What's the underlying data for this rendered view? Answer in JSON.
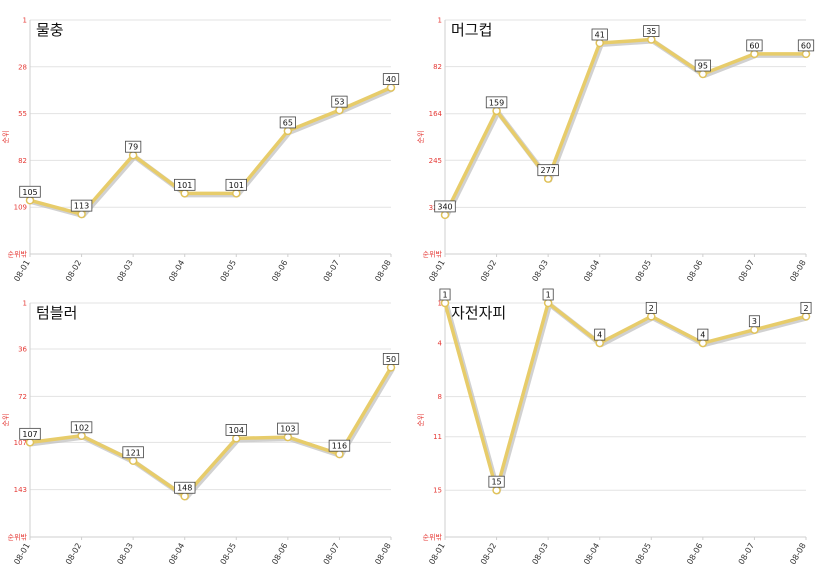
{
  "chart_data": [
    {
      "type": "line",
      "title": "물충",
      "ylabel": "순위",
      "ymin_label": "순위밖",
      "ylim": [
        1,
        136
      ],
      "yticks": [
        1,
        28,
        55,
        82,
        109
      ],
      "reversed": true,
      "categories": [
        "08-01",
        "08-02",
        "08-03",
        "08-04",
        "08-05",
        "08-06",
        "08-07",
        "08-08"
      ],
      "values": [
        105,
        113,
        79,
        101,
        101,
        65,
        53,
        40
      ],
      "color": "#e7cc6a"
    },
    {
      "type": "line",
      "title": "머그컵",
      "ylabel": "순위",
      "ymin_label": "순위밖",
      "ylim": [
        1,
        408
      ],
      "yticks": [
        1,
        82,
        164,
        245,
        327
      ],
      "reversed": true,
      "categories": [
        "08-01",
        "08-02",
        "08-03",
        "08-04",
        "08-05",
        "08-06",
        "08-07",
        "08-08"
      ],
      "values": [
        340,
        159,
        277,
        41,
        35,
        95,
        60,
        60
      ],
      "color": "#e7cc6a"
    },
    {
      "type": "line",
      "title": "텀블러",
      "ylabel": "순위",
      "ymin_label": "순위밖",
      "ylim": [
        1,
        179
      ],
      "yticks": [
        1,
        36,
        72,
        107,
        143
      ],
      "reversed": true,
      "categories": [
        "08-01",
        "08-02",
        "08-03",
        "08-04",
        "08-05",
        "08-06",
        "08-07",
        "08-08"
      ],
      "values": [
        107,
        102,
        121,
        148,
        104,
        103,
        116,
        50
      ],
      "color": "#e7cc6a"
    },
    {
      "type": "line",
      "title": "자전자피",
      "ylabel": "순위",
      "ymin_label": "순위밖",
      "ylim": [
        1,
        18.5
      ],
      "yticks": [
        1,
        4,
        8,
        11,
        15
      ],
      "reversed": true,
      "categories": [
        "08-01",
        "08-02",
        "08-03",
        "08-04",
        "08-05",
        "08-06",
        "08-07",
        "08-08"
      ],
      "values": [
        1,
        15,
        1,
        4,
        2,
        4,
        3,
        2
      ],
      "color": "#e7cc6a"
    }
  ]
}
